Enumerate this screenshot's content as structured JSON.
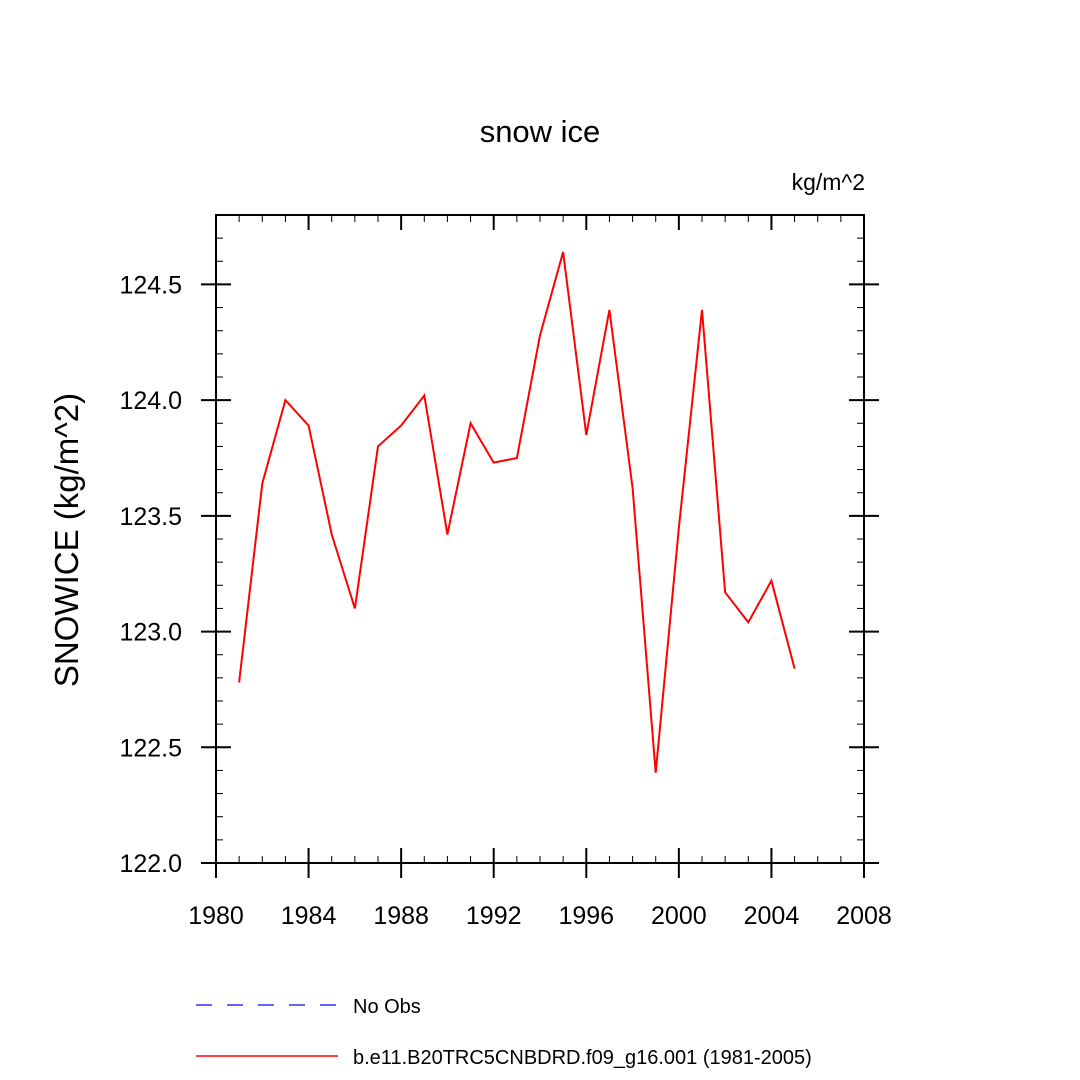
{
  "chart_data": {
    "type": "line",
    "title": "snow ice",
    "units_label": "kg/m^2",
    "ylabel": "SNOWICE  (kg/m^2)",
    "xlabel": "",
    "xlim": [
      1980,
      2008
    ],
    "ylim": [
      122.0,
      124.8
    ],
    "x_ticks": [
      1980,
      1984,
      1988,
      1992,
      1996,
      2000,
      2004,
      2008
    ],
    "y_ticks": [
      "122.0",
      "122.5",
      "123.0",
      "123.5",
      "124.0",
      "124.5"
    ],
    "grid": false,
    "legend_placement": "bottom",
    "series": [
      {
        "name": "No Obs",
        "color": "#3333ff",
        "dash": true,
        "x": [],
        "values": []
      },
      {
        "name": "b.e11.B20TRC5CNBDRD.f09_g16.001 (1981-2005)",
        "color": "#ff0000",
        "dash": false,
        "x": [
          1981,
          1982,
          1983,
          1984,
          1985,
          1986,
          1987,
          1988,
          1989,
          1990,
          1991,
          1992,
          1993,
          1994,
          1995,
          1996,
          1997,
          1998,
          1999,
          2000,
          2001,
          2002,
          2003,
          2004,
          2005
        ],
        "values": [
          122.78,
          123.64,
          124.0,
          123.89,
          123.42,
          123.1,
          123.8,
          123.89,
          124.02,
          123.42,
          123.9,
          123.73,
          123.75,
          124.28,
          124.64,
          123.85,
          124.39,
          123.62,
          122.39,
          123.45,
          124.39,
          123.17,
          123.04,
          123.22,
          122.84
        ]
      }
    ]
  }
}
